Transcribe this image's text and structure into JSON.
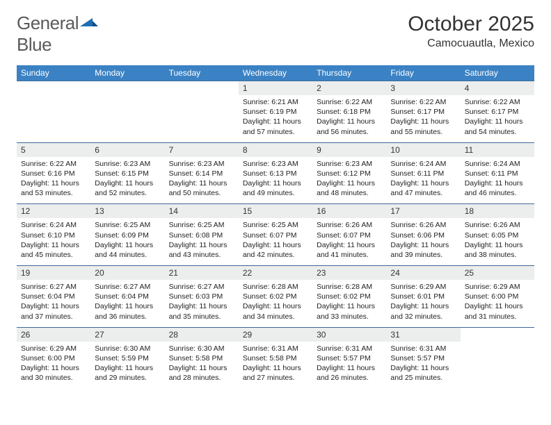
{
  "logo": {
    "text1": "General",
    "text2": "Blue"
  },
  "title": "October 2025",
  "location": "Camocuautla, Mexico",
  "colors": {
    "header_bg": "#3b82c4",
    "header_text": "#ffffff",
    "daynum_bg": "#eceded",
    "border": "#3b6a9a",
    "logo_gray": "#5a5a5a",
    "logo_blue": "#1f6db3"
  },
  "fonts": {
    "title_size": 30,
    "location_size": 16,
    "dayhead_size": 12,
    "body_size": 10.5
  },
  "day_headers": [
    "Sunday",
    "Monday",
    "Tuesday",
    "Wednesday",
    "Thursday",
    "Friday",
    "Saturday"
  ],
  "weeks": [
    {
      "days": [
        null,
        null,
        null,
        {
          "num": "1",
          "sunrise": "Sunrise: 6:21 AM",
          "sunset": "Sunset: 6:19 PM",
          "daylight": "Daylight: 11 hours and 57 minutes."
        },
        {
          "num": "2",
          "sunrise": "Sunrise: 6:22 AM",
          "sunset": "Sunset: 6:18 PM",
          "daylight": "Daylight: 11 hours and 56 minutes."
        },
        {
          "num": "3",
          "sunrise": "Sunrise: 6:22 AM",
          "sunset": "Sunset: 6:17 PM",
          "daylight": "Daylight: 11 hours and 55 minutes."
        },
        {
          "num": "4",
          "sunrise": "Sunrise: 6:22 AM",
          "sunset": "Sunset: 6:17 PM",
          "daylight": "Daylight: 11 hours and 54 minutes."
        }
      ]
    },
    {
      "days": [
        {
          "num": "5",
          "sunrise": "Sunrise: 6:22 AM",
          "sunset": "Sunset: 6:16 PM",
          "daylight": "Daylight: 11 hours and 53 minutes."
        },
        {
          "num": "6",
          "sunrise": "Sunrise: 6:23 AM",
          "sunset": "Sunset: 6:15 PM",
          "daylight": "Daylight: 11 hours and 52 minutes."
        },
        {
          "num": "7",
          "sunrise": "Sunrise: 6:23 AM",
          "sunset": "Sunset: 6:14 PM",
          "daylight": "Daylight: 11 hours and 50 minutes."
        },
        {
          "num": "8",
          "sunrise": "Sunrise: 6:23 AM",
          "sunset": "Sunset: 6:13 PM",
          "daylight": "Daylight: 11 hours and 49 minutes."
        },
        {
          "num": "9",
          "sunrise": "Sunrise: 6:23 AM",
          "sunset": "Sunset: 6:12 PM",
          "daylight": "Daylight: 11 hours and 48 minutes."
        },
        {
          "num": "10",
          "sunrise": "Sunrise: 6:24 AM",
          "sunset": "Sunset: 6:11 PM",
          "daylight": "Daylight: 11 hours and 47 minutes."
        },
        {
          "num": "11",
          "sunrise": "Sunrise: 6:24 AM",
          "sunset": "Sunset: 6:11 PM",
          "daylight": "Daylight: 11 hours and 46 minutes."
        }
      ]
    },
    {
      "days": [
        {
          "num": "12",
          "sunrise": "Sunrise: 6:24 AM",
          "sunset": "Sunset: 6:10 PM",
          "daylight": "Daylight: 11 hours and 45 minutes."
        },
        {
          "num": "13",
          "sunrise": "Sunrise: 6:25 AM",
          "sunset": "Sunset: 6:09 PM",
          "daylight": "Daylight: 11 hours and 44 minutes."
        },
        {
          "num": "14",
          "sunrise": "Sunrise: 6:25 AM",
          "sunset": "Sunset: 6:08 PM",
          "daylight": "Daylight: 11 hours and 43 minutes."
        },
        {
          "num": "15",
          "sunrise": "Sunrise: 6:25 AM",
          "sunset": "Sunset: 6:07 PM",
          "daylight": "Daylight: 11 hours and 42 minutes."
        },
        {
          "num": "16",
          "sunrise": "Sunrise: 6:26 AM",
          "sunset": "Sunset: 6:07 PM",
          "daylight": "Daylight: 11 hours and 41 minutes."
        },
        {
          "num": "17",
          "sunrise": "Sunrise: 6:26 AM",
          "sunset": "Sunset: 6:06 PM",
          "daylight": "Daylight: 11 hours and 39 minutes."
        },
        {
          "num": "18",
          "sunrise": "Sunrise: 6:26 AM",
          "sunset": "Sunset: 6:05 PM",
          "daylight": "Daylight: 11 hours and 38 minutes."
        }
      ]
    },
    {
      "days": [
        {
          "num": "19",
          "sunrise": "Sunrise: 6:27 AM",
          "sunset": "Sunset: 6:04 PM",
          "daylight": "Daylight: 11 hours and 37 minutes."
        },
        {
          "num": "20",
          "sunrise": "Sunrise: 6:27 AM",
          "sunset": "Sunset: 6:04 PM",
          "daylight": "Daylight: 11 hours and 36 minutes."
        },
        {
          "num": "21",
          "sunrise": "Sunrise: 6:27 AM",
          "sunset": "Sunset: 6:03 PM",
          "daylight": "Daylight: 11 hours and 35 minutes."
        },
        {
          "num": "22",
          "sunrise": "Sunrise: 6:28 AM",
          "sunset": "Sunset: 6:02 PM",
          "daylight": "Daylight: 11 hours and 34 minutes."
        },
        {
          "num": "23",
          "sunrise": "Sunrise: 6:28 AM",
          "sunset": "Sunset: 6:02 PM",
          "daylight": "Daylight: 11 hours and 33 minutes."
        },
        {
          "num": "24",
          "sunrise": "Sunrise: 6:29 AM",
          "sunset": "Sunset: 6:01 PM",
          "daylight": "Daylight: 11 hours and 32 minutes."
        },
        {
          "num": "25",
          "sunrise": "Sunrise: 6:29 AM",
          "sunset": "Sunset: 6:00 PM",
          "daylight": "Daylight: 11 hours and 31 minutes."
        }
      ]
    },
    {
      "days": [
        {
          "num": "26",
          "sunrise": "Sunrise: 6:29 AM",
          "sunset": "Sunset: 6:00 PM",
          "daylight": "Daylight: 11 hours and 30 minutes."
        },
        {
          "num": "27",
          "sunrise": "Sunrise: 6:30 AM",
          "sunset": "Sunset: 5:59 PM",
          "daylight": "Daylight: 11 hours and 29 minutes."
        },
        {
          "num": "28",
          "sunrise": "Sunrise: 6:30 AM",
          "sunset": "Sunset: 5:58 PM",
          "daylight": "Daylight: 11 hours and 28 minutes."
        },
        {
          "num": "29",
          "sunrise": "Sunrise: 6:31 AM",
          "sunset": "Sunset: 5:58 PM",
          "daylight": "Daylight: 11 hours and 27 minutes."
        },
        {
          "num": "30",
          "sunrise": "Sunrise: 6:31 AM",
          "sunset": "Sunset: 5:57 PM",
          "daylight": "Daylight: 11 hours and 26 minutes."
        },
        {
          "num": "31",
          "sunrise": "Sunrise: 6:31 AM",
          "sunset": "Sunset: 5:57 PM",
          "daylight": "Daylight: 11 hours and 25 minutes."
        },
        null
      ]
    }
  ]
}
